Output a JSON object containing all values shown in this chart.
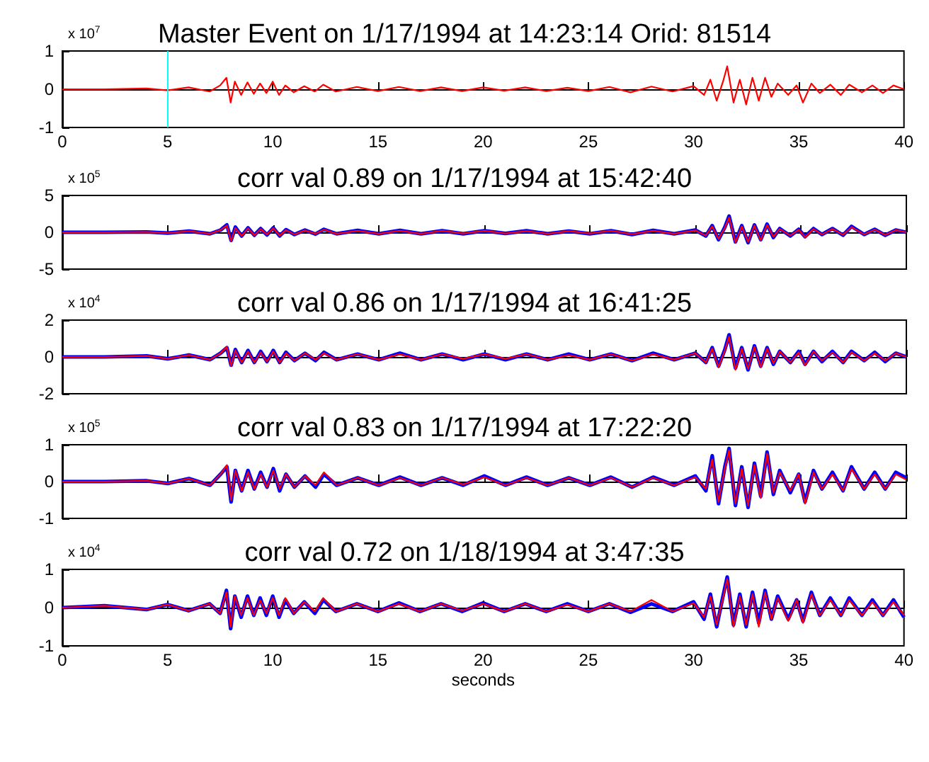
{
  "chart_data": [
    {
      "type": "line",
      "title": "Master Event on 1/17/1994 at 14:23:14 Orid: 81514",
      "annotations": [
        "x 10$^{7}$"
      ],
      "xlim": [
        0,
        40
      ],
      "xticks": [
        0,
        5,
        10,
        15,
        20,
        25,
        30,
        35,
        40
      ],
      "ylim": [
        -1,
        1
      ],
      "yticks": [
        -1,
        0,
        1
      ],
      "ref_lines": [
        {
          "axis": "x",
          "value": 5,
          "color": "#00ffff"
        }
      ],
      "x": [
        0,
        2,
        4,
        5,
        6,
        7,
        7.5,
        7.8,
        8.0,
        8.2,
        8.5,
        8.8,
        9.1,
        9.4,
        9.7,
        10.0,
        10.3,
        10.6,
        11,
        11.5,
        12,
        12.4,
        13,
        14,
        15,
        16,
        17,
        18,
        19,
        20,
        21,
        22,
        23,
        24,
        25,
        26,
        27,
        28,
        29,
        30,
        30.5,
        30.8,
        31.1,
        31.4,
        31.6,
        31.9,
        32.2,
        32.5,
        32.8,
        33.1,
        33.4,
        33.7,
        34,
        34.5,
        34.9,
        35.2,
        35.6,
        36,
        36.5,
        37,
        37.4,
        38,
        38.5,
        39,
        39.5,
        40
      ],
      "series": [
        {
          "color": "#ff0000",
          "values": [
            0,
            0,
            0.02,
            -0.03,
            0.05,
            -0.06,
            0.1,
            0.3,
            -0.35,
            0.2,
            -0.15,
            0.18,
            -0.12,
            0.15,
            -0.1,
            0.2,
            -0.15,
            0.1,
            -0.08,
            0.08,
            -0.06,
            0.12,
            -0.06,
            0.06,
            -0.05,
            0.06,
            -0.05,
            0.05,
            -0.05,
            0.05,
            -0.04,
            0.05,
            -0.05,
            0.04,
            -0.05,
            0.06,
            -0.08,
            0.07,
            -0.06,
            0.08,
            -0.15,
            0.25,
            -0.3,
            0.2,
            0.6,
            -0.35,
            0.25,
            -0.4,
            0.3,
            -0.3,
            0.3,
            -0.2,
            0.15,
            -0.15,
            0.1,
            -0.35,
            0.15,
            -0.1,
            0.12,
            -0.15,
            0.12,
            -0.08,
            0.1,
            -0.1,
            0.1,
            0
          ]
        }
      ]
    },
    {
      "type": "line",
      "title": "corr val 0.89 on 1/17/1994 at 15:42:40",
      "annotations": [
        "x 10$^{5}$"
      ],
      "xlim": [
        0,
        40
      ],
      "xticks": [
        0,
        5,
        10,
        15,
        20,
        25,
        30,
        35,
        40
      ],
      "ylim": [
        -5,
        5
      ],
      "yticks": [
        -5,
        0,
        5
      ],
      "tick_labels": "y",
      "x": [
        0,
        2,
        4,
        5,
        6,
        7,
        7.5,
        7.8,
        8.0,
        8.2,
        8.5,
        8.8,
        9.1,
        9.4,
        9.7,
        10.0,
        10.3,
        10.6,
        11,
        11.5,
        12,
        12.4,
        13,
        14,
        15,
        16,
        17,
        18,
        19,
        20,
        21,
        22,
        23,
        24,
        25,
        26,
        27,
        28,
        29,
        30,
        30.5,
        30.8,
        31.1,
        31.4,
        31.6,
        31.9,
        32.2,
        32.5,
        32.8,
        33.1,
        33.4,
        33.7,
        34,
        34.5,
        34.9,
        35.2,
        35.6,
        36,
        36.5,
        37,
        37.4,
        38,
        38.5,
        39,
        39.5,
        40
      ],
      "series": [
        {
          "color": "#0000ff",
          "values": [
            0,
            0,
            0.05,
            -0.1,
            0.15,
            -0.2,
            0.3,
            1.0,
            -1.1,
            0.7,
            -0.5,
            0.6,
            -0.4,
            0.5,
            -0.35,
            0.6,
            -0.5,
            0.35,
            -0.3,
            0.3,
            -0.25,
            0.4,
            -0.2,
            0.25,
            -0.2,
            0.25,
            -0.2,
            0.2,
            -0.2,
            0.2,
            -0.15,
            0.2,
            -0.2,
            0.15,
            -0.2,
            0.2,
            -0.3,
            0.25,
            -0.2,
            0.3,
            -0.5,
            0.9,
            -1.0,
            0.7,
            2.2,
            -1.3,
            0.9,
            -1.4,
            1.0,
            -1.0,
            1.1,
            -0.7,
            0.5,
            -0.5,
            0.4,
            -0.6,
            0.5,
            -0.3,
            0.5,
            -0.4,
            0.8,
            -0.3,
            0.4,
            -0.4,
            0.3,
            0
          ]
        },
        {
          "color": "#ff0000",
          "values": [
            0,
            0,
            0.05,
            -0.1,
            0.15,
            -0.2,
            0.3,
            0.9,
            -1.2,
            0.6,
            -0.5,
            0.55,
            -0.4,
            0.45,
            -0.3,
            0.55,
            -0.45,
            0.3,
            -0.3,
            0.25,
            -0.2,
            0.35,
            -0.2,
            0.2,
            -0.2,
            0.2,
            -0.2,
            0.2,
            -0.15,
            0.2,
            -0.15,
            0.15,
            -0.2,
            0.15,
            -0.15,
            0.2,
            -0.25,
            0.2,
            -0.2,
            0.25,
            -0.45,
            0.8,
            -0.9,
            0.6,
            2.0,
            -1.4,
            0.8,
            -1.3,
            0.9,
            -1.1,
            1.0,
            -0.6,
            0.45,
            -0.45,
            0.35,
            -0.7,
            0.45,
            -0.3,
            0.45,
            -0.35,
            0.7,
            -0.3,
            0.35,
            -0.35,
            0.3,
            0
          ]
        }
      ]
    },
    {
      "type": "line",
      "title": "corr val 0.86 on 1/17/1994 at 16:41:25",
      "annotations": [
        "x 10$^{4}$"
      ],
      "xlim": [
        0,
        40
      ],
      "xticks": [
        0,
        5,
        10,
        15,
        20,
        25,
        30,
        35,
        40
      ],
      "ylim": [
        -2,
        2
      ],
      "yticks": [
        -2,
        0,
        2
      ],
      "tick_labels": "y",
      "x": [
        0,
        2,
        4,
        5,
        6,
        7,
        7.5,
        7.8,
        8.0,
        8.2,
        8.5,
        8.8,
        9.1,
        9.4,
        9.7,
        10.0,
        10.3,
        10.6,
        11,
        11.5,
        12,
        12.4,
        13,
        14,
        15,
        16,
        17,
        18,
        19,
        20,
        21,
        22,
        23,
        24,
        25,
        26,
        27,
        28,
        29,
        30,
        30.5,
        30.8,
        31.1,
        31.4,
        31.6,
        31.9,
        32.2,
        32.5,
        32.8,
        33.1,
        33.4,
        33.7,
        34,
        34.5,
        34.9,
        35.2,
        35.6,
        36,
        36.5,
        37,
        37.4,
        38,
        38.5,
        39,
        39.5,
        40
      ],
      "series": [
        {
          "color": "#0000ff",
          "values": [
            0,
            0,
            0.05,
            -0.1,
            0.1,
            -0.15,
            0.2,
            0.5,
            -0.45,
            0.4,
            -0.3,
            0.35,
            -0.3,
            0.3,
            -0.25,
            0.35,
            -0.3,
            0.25,
            -0.2,
            0.2,
            -0.2,
            0.25,
            -0.15,
            0.15,
            -0.15,
            0.2,
            -0.15,
            0.15,
            -0.15,
            0.15,
            -0.15,
            0.15,
            -0.15,
            0.15,
            -0.15,
            0.15,
            -0.2,
            0.2,
            -0.15,
            0.2,
            -0.3,
            0.5,
            -0.5,
            0.4,
            1.2,
            -0.6,
            0.5,
            -0.7,
            0.6,
            -0.5,
            0.5,
            -0.4,
            0.3,
            -0.3,
            0.3,
            -0.4,
            0.3,
            -0.25,
            0.3,
            -0.3,
            0.3,
            -0.2,
            0.25,
            -0.25,
            0.2,
            0
          ]
        },
        {
          "color": "#ff0000",
          "values": [
            0,
            0,
            0.05,
            -0.1,
            0.1,
            -0.15,
            0.2,
            0.55,
            -0.5,
            0.35,
            -0.3,
            0.3,
            -0.3,
            0.25,
            -0.25,
            0.3,
            -0.3,
            0.2,
            -0.2,
            0.2,
            -0.15,
            0.2,
            -0.15,
            0.15,
            -0.15,
            0.15,
            -0.15,
            0.15,
            -0.1,
            0.15,
            -0.1,
            0.15,
            -0.15,
            0.1,
            -0.15,
            0.15,
            -0.2,
            0.15,
            -0.15,
            0.2,
            -0.3,
            0.45,
            -0.55,
            0.35,
            1.1,
            -0.7,
            0.45,
            -0.65,
            0.55,
            -0.55,
            0.45,
            -0.35,
            0.3,
            -0.3,
            0.25,
            -0.45,
            0.3,
            -0.2,
            0.25,
            -0.3,
            0.25,
            -0.2,
            0.2,
            -0.2,
            0.2,
            0
          ]
        }
      ]
    },
    {
      "type": "line",
      "title": "corr val 0.83 on 1/17/1994 at 17:22:20",
      "annotations": [
        "x 10$^{5}$"
      ],
      "xlim": [
        0,
        40
      ],
      "xticks": [
        0,
        5,
        10,
        15,
        20,
        25,
        30,
        35,
        40
      ],
      "ylim": [
        -1,
        1
      ],
      "yticks": [
        -1,
        0,
        1
      ],
      "tick_labels": "y",
      "x": [
        0,
        2,
        4,
        5,
        6,
        7,
        7.5,
        7.8,
        8.0,
        8.2,
        8.5,
        8.8,
        9.1,
        9.4,
        9.7,
        10.0,
        10.3,
        10.6,
        11,
        11.5,
        12,
        12.4,
        13,
        14,
        15,
        16,
        17,
        18,
        19,
        20,
        21,
        22,
        23,
        24,
        25,
        26,
        27,
        28,
        29,
        30,
        30.5,
        30.8,
        31.1,
        31.4,
        31.6,
        31.9,
        32.2,
        32.5,
        32.8,
        33.1,
        33.4,
        33.7,
        34,
        34.5,
        34.9,
        35.2,
        35.6,
        36,
        36.5,
        37,
        37.4,
        38,
        38.5,
        39,
        39.5,
        40
      ],
      "series": [
        {
          "color": "#0000ff",
          "values": [
            0,
            0,
            0.02,
            -0.05,
            0.08,
            -0.1,
            0.2,
            0.4,
            -0.55,
            0.3,
            -0.25,
            0.3,
            -0.2,
            0.25,
            -0.15,
            0.35,
            -0.25,
            0.2,
            -0.15,
            0.15,
            -0.15,
            0.2,
            -0.1,
            0.1,
            -0.1,
            0.12,
            -0.1,
            0.1,
            -0.1,
            0.15,
            -0.1,
            0.12,
            -0.1,
            0.1,
            -0.1,
            0.12,
            -0.15,
            0.12,
            -0.1,
            0.15,
            -0.25,
            0.7,
            -0.6,
            0.4,
            0.9,
            -0.65,
            0.4,
            -0.7,
            0.5,
            -0.4,
            0.8,
            -0.35,
            0.3,
            -0.3,
            0.2,
            -0.55,
            0.3,
            -0.2,
            0.25,
            -0.25,
            0.4,
            -0.2,
            0.25,
            -0.2,
            0.25,
            0.1
          ]
        },
        {
          "color": "#ff0000",
          "values": [
            0,
            0,
            0.02,
            -0.05,
            0.08,
            -0.1,
            0.2,
            0.45,
            -0.5,
            0.3,
            -0.25,
            0.25,
            -0.2,
            0.2,
            -0.15,
            0.3,
            -0.2,
            0.2,
            -0.15,
            0.15,
            -0.1,
            0.25,
            -0.1,
            0.1,
            -0.1,
            0.1,
            -0.1,
            0.1,
            -0.08,
            0.12,
            -0.1,
            0.1,
            -0.1,
            0.1,
            -0.1,
            0.1,
            -0.15,
            0.1,
            -0.1,
            0.12,
            -0.2,
            0.6,
            -0.55,
            0.35,
            0.85,
            -0.6,
            0.35,
            -0.65,
            0.45,
            -0.45,
            0.75,
            -0.3,
            0.25,
            -0.25,
            0.2,
            -0.6,
            0.25,
            -0.2,
            0.2,
            -0.25,
            0.35,
            -0.2,
            0.2,
            -0.2,
            0.2,
            0.05
          ]
        }
      ]
    },
    {
      "type": "line",
      "title": "corr val 0.72 on 1/18/1994 at 3:47:35",
      "annotations": [
        "x 10$^{4}$"
      ],
      "xlabel": "seconds",
      "xlim": [
        0,
        40
      ],
      "xticks": [
        0,
        5,
        10,
        15,
        20,
        25,
        30,
        35,
        40
      ],
      "ylim": [
        -1,
        1
      ],
      "yticks": [
        -1,
        0,
        1
      ],
      "x": [
        0,
        2,
        4,
        5,
        6,
        7,
        7.5,
        7.8,
        8.0,
        8.2,
        8.5,
        8.8,
        9.1,
        9.4,
        9.7,
        10.0,
        10.3,
        10.6,
        11,
        11.5,
        12,
        12.4,
        13,
        14,
        15,
        16,
        17,
        18,
        19,
        20,
        21,
        22,
        23,
        24,
        25,
        26,
        27,
        28,
        29,
        30,
        30.5,
        30.8,
        31.1,
        31.4,
        31.6,
        31.9,
        32.2,
        32.5,
        32.8,
        33.1,
        33.4,
        33.7,
        34,
        34.5,
        34.9,
        35.2,
        35.6,
        36,
        36.5,
        37,
        37.4,
        38,
        38.5,
        39,
        39.5,
        40
      ],
      "series": [
        {
          "color": "#0000ff",
          "values": [
            0,
            0.05,
            -0.05,
            0.08,
            -0.08,
            0.1,
            -0.15,
            0.45,
            -0.55,
            0.3,
            -0.25,
            0.3,
            -0.2,
            0.25,
            -0.2,
            0.3,
            -0.25,
            0.2,
            -0.15,
            0.15,
            -0.15,
            0.2,
            -0.1,
            0.1,
            -0.1,
            0.12,
            -0.1,
            0.1,
            -0.1,
            0.12,
            -0.1,
            0.1,
            -0.1,
            0.1,
            -0.1,
            0.1,
            -0.12,
            0.1,
            -0.1,
            0.15,
            -0.3,
            0.35,
            -0.5,
            0.3,
            0.8,
            -0.45,
            0.35,
            -0.5,
            0.4,
            -0.4,
            0.45,
            -0.3,
            0.3,
            -0.3,
            0.2,
            -0.35,
            0.4,
            -0.2,
            0.25,
            -0.2,
            0.25,
            -0.2,
            0.2,
            -0.2,
            0.2,
            -0.25
          ]
        },
        {
          "color": "#ff0000",
          "values": [
            0,
            0.05,
            -0.05,
            0.08,
            -0.08,
            0.1,
            -0.15,
            0.4,
            -0.5,
            0.3,
            -0.2,
            0.25,
            -0.2,
            0.2,
            -0.15,
            0.25,
            -0.2,
            0.25,
            -0.15,
            0.15,
            -0.1,
            0.25,
            -0.1,
            0.1,
            -0.1,
            0.1,
            -0.1,
            0.1,
            -0.08,
            0.1,
            -0.1,
            0.1,
            -0.1,
            0.08,
            -0.1,
            0.1,
            -0.1,
            0.2,
            -0.1,
            0.12,
            -0.25,
            0.3,
            -0.45,
            0.25,
            0.75,
            -0.5,
            0.3,
            -0.45,
            0.35,
            -0.5,
            0.4,
            -0.3,
            0.25,
            -0.35,
            0.2,
            -0.4,
            0.35,
            -0.2,
            0.2,
            -0.2,
            0.2,
            -0.2,
            0.15,
            -0.2,
            0.15,
            -0.2
          ]
        }
      ]
    }
  ]
}
